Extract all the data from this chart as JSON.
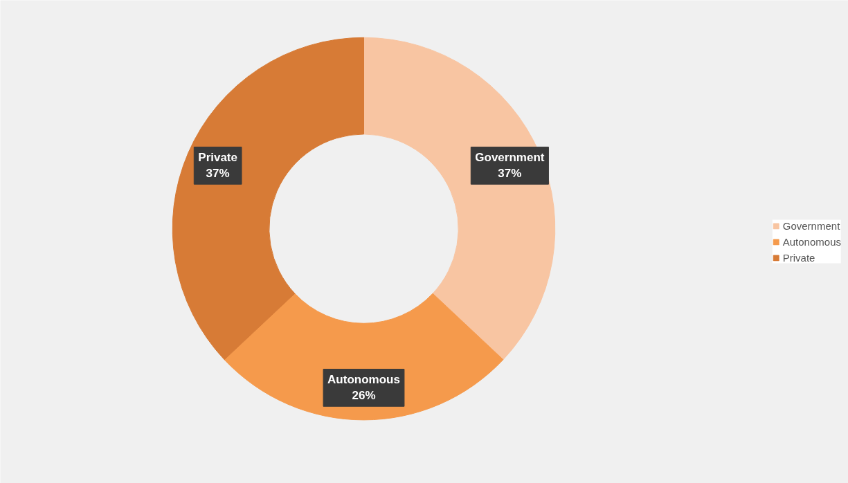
{
  "chart_data": {
    "type": "donut",
    "categories": [
      "Government",
      "Autonomous",
      "Private"
    ],
    "values": [
      37,
      26,
      37
    ],
    "colors": [
      "#f8c5a2",
      "#f59a4c",
      "#d77b36"
    ],
    "value_labels": [
      "37%",
      "26%",
      "37%"
    ],
    "legend": "right"
  }
}
